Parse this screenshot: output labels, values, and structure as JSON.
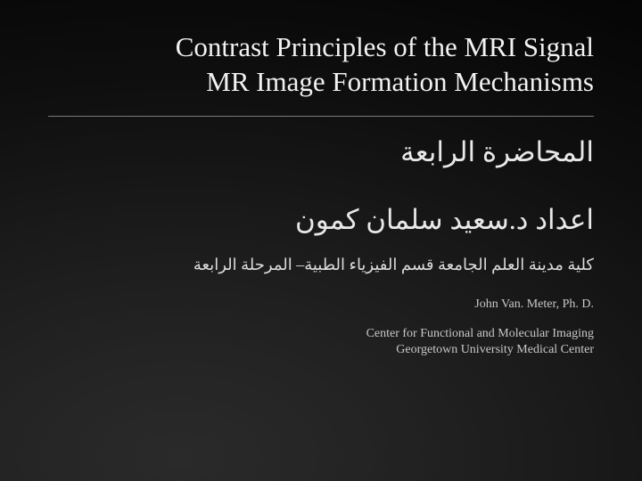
{
  "slide": {
    "background": {
      "gradient_center": "28% 95%",
      "stops": [
        "#2a2a2a",
        "#242424",
        "#1a1a1a",
        "#0f0f0f",
        "#050505"
      ]
    },
    "title": {
      "line1": "Contrast  Principles of the MRI Signal",
      "line2": "MR Image Formation Mechanisms",
      "color": "#f2f2f2",
      "fontsize": 31,
      "align": "right"
    },
    "divider": {
      "color": "#7a7a7a",
      "width": 1
    },
    "subtitle_ar": {
      "text": "المحاضرة الرابعة",
      "color": "#e8e8e8",
      "fontsize": 31,
      "dir": "rtl"
    },
    "author_ar": {
      "text": "اعداد د.سعيد سلمان كمون",
      "color": "#e8e8e8",
      "fontsize": 31,
      "dir": "rtl"
    },
    "affil_ar": {
      "text": "كلية مدينة العلم الجامعة قسم الفيزياء الطبية– المرحلة الرابعة",
      "color": "#dcdcdc",
      "fontsize": 18,
      "dir": "rtl"
    },
    "author_en": {
      "text": "John Van. Meter, Ph. D.",
      "color": "#c8c8c8",
      "fontsize": 14
    },
    "affil_en": {
      "line1": "Center for Functional and Molecular Imaging",
      "line2": "Georgetown University Medical Center",
      "color": "#c8c8c8",
      "fontsize": 14
    }
  }
}
